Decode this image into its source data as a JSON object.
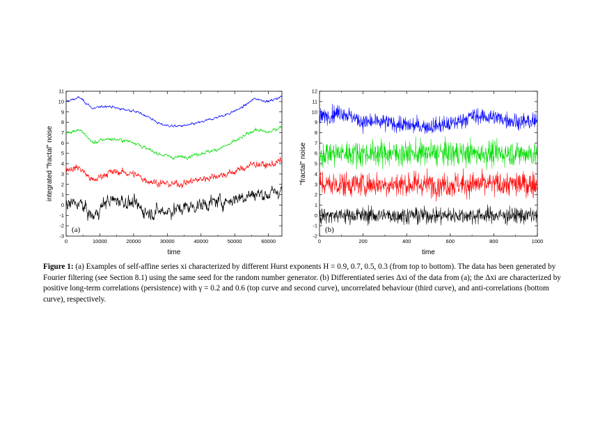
{
  "figure": {
    "caption": {
      "label": "Figure 1:",
      "text": "(a) Examples of self-affine series xi characterized by different Hurst exponents H = 0.9, 0.7, 0.5, 0.3 (from top to bottom). The data has been generated by Fourier filtering (see Section 8.1) using the same seed for the random number generator. (b) Differentiated series Δxi of the data from (a); the Δxi are characterized by positive long-term correlations (persistence) with γ = 0.2 and 0.6 (top curve and second curve), uncorrelated behaviour (third curve), and anti-correlations (bottom curve), respectively."
    }
  },
  "chart_data": [
    {
      "type": "line",
      "panel_label": "(a)",
      "xlabel": "time",
      "ylabel": "integrated \"fractal\" noise",
      "xlim": [
        0,
        64000
      ],
      "ylim": [
        -3,
        11
      ],
      "xticks": [
        "0",
        "10000",
        "20000",
        "30000",
        "40000",
        "50000",
        "60000"
      ],
      "yticks": [
        "-3",
        "-2",
        "-1",
        "0",
        "1",
        "2",
        "3",
        "4",
        "5",
        "6",
        "7",
        "8",
        "9",
        "10",
        "11"
      ],
      "grid": false,
      "x": [
        0,
        4000,
        8000,
        12000,
        16000,
        20000,
        24000,
        28000,
        32000,
        36000,
        40000,
        44000,
        48000,
        52000,
        56000,
        60000,
        64000
      ],
      "series": [
        {
          "color": "#0000ff",
          "values": [
            10.0,
            10.4,
            9.3,
            9.6,
            9.3,
            9.1,
            8.6,
            7.8,
            7.6,
            7.7,
            8.0,
            8.4,
            8.8,
            9.4,
            10.3,
            10.0,
            10.5
          ]
        },
        {
          "color": "#00dd00",
          "values": [
            7.0,
            7.3,
            6.0,
            6.4,
            6.3,
            6.1,
            5.4,
            4.9,
            4.6,
            4.7,
            5.0,
            5.3,
            5.8,
            6.5,
            7.3,
            7.0,
            7.6
          ]
        },
        {
          "color": "#ff0000",
          "values": [
            3.5,
            3.6,
            2.3,
            3.1,
            3.2,
            3.0,
            2.4,
            2.1,
            2.0,
            2.2,
            2.5,
            2.8,
            3.0,
            3.5,
            4.0,
            3.8,
            4.3
          ]
        },
        {
          "color": "#000000",
          "values": [
            0.0,
            0.2,
            -1.2,
            0.4,
            0.5,
            0.1,
            -0.7,
            -0.6,
            -0.5,
            -0.2,
            0.0,
            0.3,
            0.4,
            0.8,
            1.1,
            1.0,
            1.5
          ]
        }
      ]
    },
    {
      "type": "line",
      "panel_label": "(b)",
      "xlabel": "time",
      "ylabel": "\"fractal\" noise",
      "xlim": [
        0,
        1000
      ],
      "ylim": [
        -2,
        12
      ],
      "xticks": [
        "0",
        "200",
        "400",
        "600",
        "800",
        "1000"
      ],
      "yticks": [
        "-2",
        "-1",
        "0",
        "1",
        "2",
        "3",
        "4",
        "5",
        "6",
        "7",
        "8",
        "9",
        "10",
        "11",
        "12"
      ],
      "grid": false,
      "x": [
        0,
        100,
        200,
        300,
        400,
        500,
        600,
        700,
        800,
        900,
        1000
      ],
      "series": [
        {
          "color": "#0000ff",
          "values": [
            9.5,
            10.0,
            9.0,
            9.0,
            8.7,
            8.6,
            8.8,
            9.6,
            9.5,
            9.1,
            9.0
          ]
        },
        {
          "color": "#00dd00",
          "values": [
            6.0,
            6.0,
            6.0,
            6.0,
            6.0,
            6.0,
            6.0,
            6.0,
            6.0,
            6.0,
            6.0
          ]
        },
        {
          "color": "#ff0000",
          "values": [
            3.0,
            3.0,
            3.0,
            3.0,
            3.0,
            3.0,
            3.0,
            3.0,
            3.0,
            3.0,
            3.0
          ]
        },
        {
          "color": "#000000",
          "values": [
            0.0,
            0.0,
            0.0,
            0.0,
            0.0,
            0.0,
            0.0,
            0.0,
            0.0,
            0.0,
            0.0
          ]
        }
      ]
    }
  ]
}
